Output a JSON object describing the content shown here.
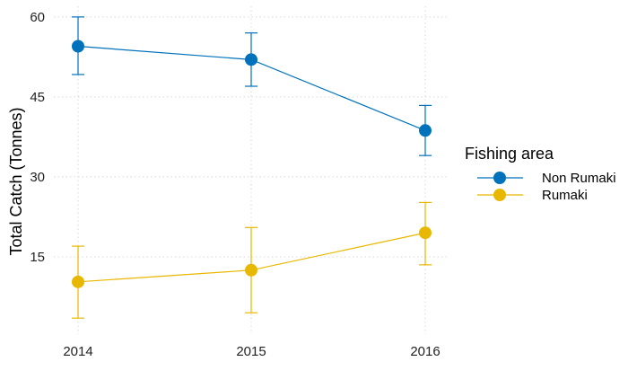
{
  "chart_data": {
    "type": "line",
    "xlabel": "",
    "ylabel": "Total Catch (Tonnes)",
    "x": [
      2014,
      2015,
      2016
    ],
    "y_ticks": [
      15,
      30,
      45,
      60
    ],
    "ylim": [
      0.5,
      62
    ],
    "grid": true,
    "legend": {
      "title": "Fishing area",
      "placement": "right"
    },
    "error_bars": true,
    "series": [
      {
        "name": "Non Rumaki",
        "color": "#0072BB",
        "values": [
          54.5,
          52.0,
          38.7
        ],
        "lower": [
          49.2,
          47.0,
          34.0
        ],
        "upper": [
          60.0,
          57.0,
          43.4
        ]
      },
      {
        "name": "Rumaki",
        "color": "#E8B800",
        "values": [
          10.3,
          12.5,
          19.5
        ],
        "lower": [
          3.5,
          4.5,
          13.5
        ],
        "upper": [
          17.0,
          20.5,
          25.2
        ]
      }
    ]
  }
}
